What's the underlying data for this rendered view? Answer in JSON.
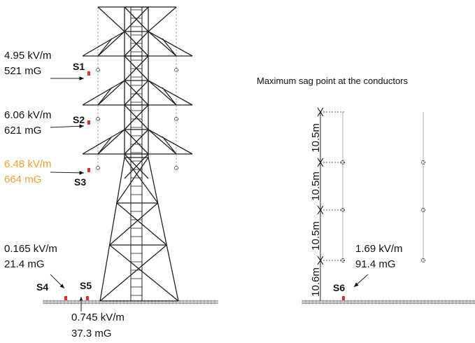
{
  "title": "Maximum sag point at the conductors",
  "sensors": [
    {
      "id": "S1",
      "e_field": "4.95 kV/m",
      "b_field": "521 mG"
    },
    {
      "id": "S2",
      "e_field": "6.06 kV/m",
      "b_field": "621 mG"
    },
    {
      "id": "S3",
      "e_field": "6.48 kV/m",
      "b_field": "664 mG"
    },
    {
      "id": "S4",
      "e_field": "0.165 kV/m",
      "b_field": "21.4 mG"
    },
    {
      "id": "S5",
      "e_field": "0.745 kV/m",
      "b_field": "37.3 mG"
    },
    {
      "id": "S6",
      "e_field": "1.69 kV/m",
      "b_field": "91.4 mG"
    }
  ],
  "dimensions": [
    "10.5m",
    "10.5m",
    "10.5m",
    "10.6m"
  ]
}
